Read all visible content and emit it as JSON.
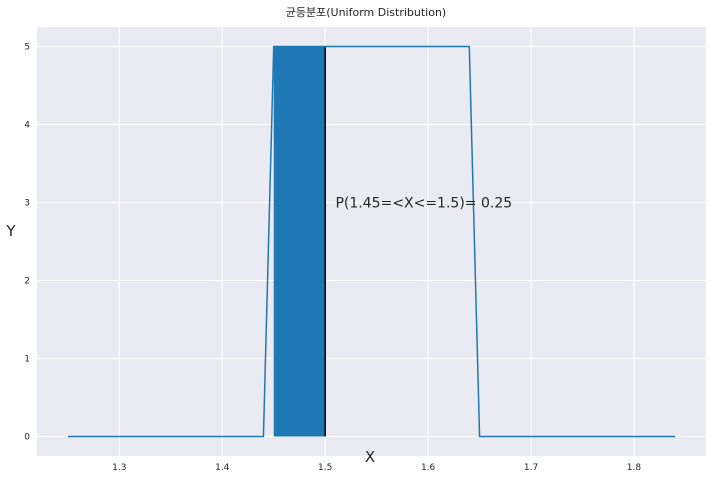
{
  "chart_data": {
    "type": "line",
    "title": "균등분포(Uniform Distribution)",
    "xlabel": "X",
    "ylabel": "Y",
    "xlim": [
      1.22,
      1.87
    ],
    "ylim": [
      -0.25,
      5.25
    ],
    "grid": true,
    "x_ticks": [
      "1.3",
      "1.4",
      "1.5",
      "1.6",
      "1.7",
      "1.8"
    ],
    "y_ticks": [
      "0",
      "1",
      "2",
      "3",
      "4",
      "5"
    ],
    "series": [
      {
        "color": "#1f77b4",
        "points": [
          [
            1.25,
            0
          ],
          [
            1.44,
            0
          ],
          [
            1.45,
            5
          ],
          [
            1.64,
            5
          ],
          [
            1.65,
            0
          ],
          [
            1.84,
            0
          ]
        ]
      }
    ],
    "shaded_region": {
      "x_from": 1.45,
      "x_to": 1.5,
      "height": 5,
      "color": "#1f77b4",
      "edge_color": "#000000"
    },
    "annotation": {
      "text": "P(1.45=<X<=1.5)=  0.25",
      "x": 1.51,
      "y": 3.0
    },
    "colors": {
      "plot_background": "#eaeaf2",
      "grid": "#ffffff",
      "line": "#1f77b4"
    }
  }
}
